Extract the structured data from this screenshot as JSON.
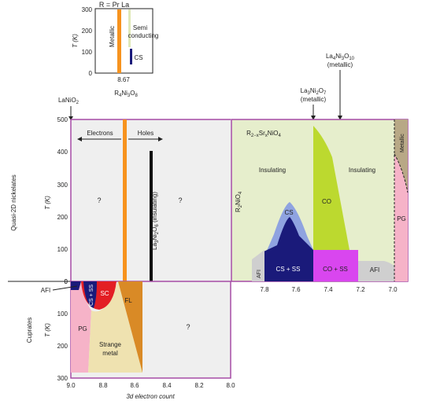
{
  "inset": {
    "title": "R = Pr La",
    "ylabel": "T (K)",
    "yticks": [
      "300",
      "200",
      "100",
      "0"
    ],
    "xtick": "8.67",
    "metallic_label": "Metallic",
    "semi_label": "Semi conducting",
    "cs_label": "CS"
  },
  "nickelates": {
    "ylabel_side": "Quasi-2D nickelates",
    "ylabel_unit": "T (K)",
    "yticks": [
      "500",
      "400",
      "300",
      "200",
      "100",
      "0"
    ],
    "lanio2": "LaNiO2",
    "r4ni3o8": "R4Ni3O8",
    "electrons": "Electrons",
    "holes": "Holes",
    "q1": "?",
    "q2": "?",
    "la3ni2o6": "La3Ni2O6 (insulating)"
  },
  "rp": {
    "formula": "R2−xSrxNiO4",
    "r2nio4": "R2NiO4",
    "insulating_left": "Insulating",
    "insulating_right": "Insulating",
    "cs": "CS",
    "co": "CO",
    "cs_ss": "CS + SS",
    "co_ss": "CO + SS",
    "afi_left": "AFI",
    "afi_right": "AFI",
    "pg": "PG",
    "metallic": "Metallic",
    "xticks": [
      "7.8",
      "7.6",
      "7.4",
      "7.2",
      "7.0"
    ],
    "la3ni2o7": "La3Ni2O7",
    "la3ni2o7_sub": "(metallic)",
    "la4ni3o10": "La4Ni3O10",
    "la4ni3o10_sub": "(metallic)"
  },
  "cuprates": {
    "ylabel_side": "Cuprates",
    "ylabel_unit": "T (K)",
    "yticks": [
      "0",
      "100",
      "200",
      "300"
    ],
    "afi": "AFI",
    "cs_ss": "CS + SS",
    "sc": "SC",
    "fl": "FL",
    "pg": "PG",
    "strange": "Strange",
    "metal": "metal",
    "q": "?",
    "xticks": [
      "9.0",
      "8.8",
      "8.6",
      "8.4",
      "8.2",
      "8.0"
    ],
    "xlabel": "3d electron count"
  },
  "colors": {
    "panel_gray": "#efefef",
    "panel_green": "#e6eecc",
    "violet": "#a64ca6",
    "orange": "#f7931e",
    "navy": "#1a1a7a",
    "blue_light": "#8fa3e0",
    "lime": "#bcd92f",
    "magenta": "#d946ef",
    "pink": "#f6b3c8",
    "tan": "#efe2b0",
    "dark_orange": "#d98a26",
    "red": "#e31e24",
    "afi_gray": "#cfcfcf",
    "metal_brown": "#b8a886"
  }
}
